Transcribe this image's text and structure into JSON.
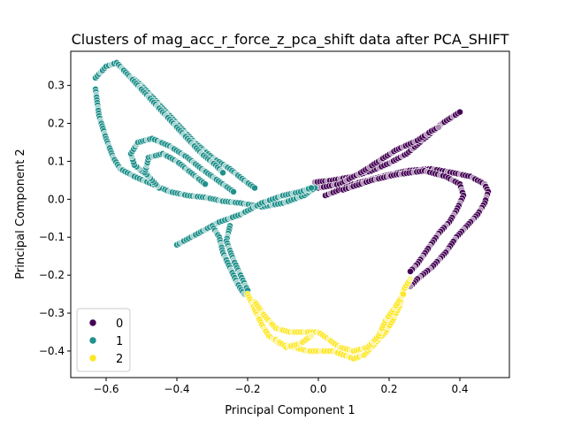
{
  "chart_data": {
    "type": "scatter",
    "title": "Clusters of mag_acc_r_force_z_pca_shift data after PCA_SHIFT",
    "xlabel": "Principal Component 1",
    "ylabel": "Principal Component 2",
    "xlim": [
      -0.7,
      0.54
    ],
    "ylim": [
      -0.47,
      0.39
    ],
    "xticks": [
      -0.6,
      -0.4,
      -0.2,
      0.0,
      0.2,
      0.4
    ],
    "xtick_labels": [
      "−0.6",
      "−0.4",
      "−0.2",
      "0.0",
      "0.2",
      "0.4"
    ],
    "yticks": [
      -0.4,
      -0.3,
      -0.2,
      -0.1,
      0.0,
      0.1,
      0.2,
      0.3
    ],
    "ytick_labels": [
      "−0.4",
      "−0.3",
      "−0.2",
      "−0.1",
      "0.0",
      "0.1",
      "0.2",
      "0.3"
    ],
    "grid": false,
    "legend": {
      "placement": "lower-left",
      "entries": [
        "0",
        "1",
        "2"
      ]
    },
    "series": [
      {
        "name": "0",
        "color": "#440154",
        "paths": [
          [
            [
              -0.01,
              0.045
            ],
            [
              0.04,
              0.05
            ],
            [
              0.1,
              0.06
            ],
            [
              0.15,
              0.075
            ],
            [
              0.2,
              0.095
            ],
            [
              0.25,
              0.12
            ],
            [
              0.3,
              0.16
            ],
            [
              0.35,
              0.2
            ],
            [
              0.4,
              0.23
            ]
          ],
          [
            [
              0.0,
              0.03
            ],
            [
              0.06,
              0.04
            ],
            [
              0.12,
              0.07
            ],
            [
              0.17,
              0.1
            ],
            [
              0.22,
              0.13
            ],
            [
              0.28,
              0.155
            ],
            [
              0.32,
              0.18
            ],
            [
              0.34,
              0.19
            ]
          ],
          [
            [
              0.02,
              0.01
            ],
            [
              0.1,
              0.04
            ],
            [
              0.18,
              0.06
            ],
            [
              0.25,
              0.075
            ],
            [
              0.32,
              0.08
            ],
            [
              0.38,
              0.07
            ],
            [
              0.43,
              0.06
            ],
            [
              0.47,
              0.04
            ],
            [
              0.48,
              0.02
            ],
            [
              0.47,
              -0.01
            ],
            [
              0.45,
              -0.04
            ],
            [
              0.42,
              -0.07
            ],
            [
              0.39,
              -0.1
            ],
            [
              0.36,
              -0.14
            ],
            [
              0.32,
              -0.18
            ],
            [
              0.28,
              -0.21
            ],
            [
              0.26,
              -0.23
            ]
          ],
          [
            [
              0.07,
              0.025
            ],
            [
              0.15,
              0.05
            ],
            [
              0.22,
              0.065
            ],
            [
              0.3,
              0.075
            ],
            [
              0.36,
              0.06
            ],
            [
              0.4,
              0.04
            ],
            [
              0.41,
              0.01
            ],
            [
              0.39,
              -0.03
            ],
            [
              0.37,
              -0.06
            ],
            [
              0.34,
              -0.09
            ],
            [
              0.31,
              -0.13
            ],
            [
              0.28,
              -0.17
            ],
            [
              0.26,
              -0.19
            ]
          ]
        ]
      },
      {
        "name": "1",
        "color": "#21918c",
        "paths": [
          [
            [
              -0.63,
              0.29
            ],
            [
              -0.62,
              0.22
            ],
            [
              -0.6,
              0.16
            ],
            [
              -0.58,
              0.11
            ],
            [
              -0.56,
              0.08
            ],
            [
              -0.52,
              0.06
            ],
            [
              -0.47,
              0.04
            ],
            [
              -0.42,
              0.02
            ],
            [
              -0.37,
              0.01
            ],
            [
              -0.32,
              0.005
            ],
            [
              -0.27,
              -0.005
            ],
            [
              -0.22,
              -0.01
            ],
            [
              -0.16,
              -0.02
            ],
            [
              -0.1,
              -0.01
            ],
            [
              -0.04,
              0.01
            ],
            [
              -0.01,
              0.03
            ]
          ],
          [
            [
              -0.63,
              0.32
            ],
            [
              -0.6,
              0.35
            ],
            [
              -0.57,
              0.36
            ],
            [
              -0.54,
              0.33
            ],
            [
              -0.5,
              0.3
            ],
            [
              -0.45,
              0.25
            ],
            [
              -0.4,
              0.2
            ],
            [
              -0.35,
              0.15
            ],
            [
              -0.3,
              0.11
            ],
            [
              -0.25,
              0.08
            ],
            [
              -0.21,
              0.05
            ],
            [
              -0.18,
              0.03
            ]
          ],
          [
            [
              -0.55,
              0.34
            ],
            [
              -0.52,
              0.31
            ],
            [
              -0.48,
              0.27
            ],
            [
              -0.43,
              0.22
            ],
            [
              -0.38,
              0.17
            ],
            [
              -0.33,
              0.12
            ],
            [
              -0.29,
              0.09
            ],
            [
              -0.27,
              0.07
            ]
          ],
          [
            [
              -0.48,
              0.06
            ],
            [
              -0.52,
              0.09
            ],
            [
              -0.53,
              0.12
            ],
            [
              -0.51,
              0.15
            ],
            [
              -0.47,
              0.16
            ],
            [
              -0.42,
              0.14
            ],
            [
              -0.37,
              0.11
            ],
            [
              -0.33,
              0.08
            ],
            [
              -0.3,
              0.06
            ],
            [
              -0.27,
              0.04
            ],
            [
              -0.24,
              0.02
            ]
          ],
          [
            [
              -0.45,
              0.03
            ],
            [
              -0.49,
              0.07
            ],
            [
              -0.48,
              0.11
            ],
            [
              -0.44,
              0.12
            ],
            [
              -0.4,
              0.1
            ],
            [
              -0.36,
              0.07
            ],
            [
              -0.32,
              0.04
            ]
          ],
          [
            [
              -0.4,
              -0.12
            ],
            [
              -0.34,
              -0.09
            ],
            [
              -0.28,
              -0.06
            ],
            [
              -0.22,
              -0.04
            ],
            [
              -0.16,
              -0.01
            ],
            [
              -0.1,
              0.01
            ],
            [
              -0.05,
              0.02
            ],
            [
              -0.02,
              0.03
            ]
          ],
          [
            [
              -0.3,
              -0.07
            ],
            [
              -0.28,
              -0.1
            ],
            [
              -0.27,
              -0.14
            ],
            [
              -0.25,
              -0.18
            ],
            [
              -0.23,
              -0.22
            ],
            [
              -0.21,
              -0.25
            ]
          ],
          [
            [
              -0.25,
              -0.07
            ],
            [
              -0.26,
              -0.11
            ],
            [
              -0.24,
              -0.16
            ],
            [
              -0.22,
              -0.2
            ],
            [
              -0.2,
              -0.24
            ]
          ]
        ]
      },
      {
        "name": "2",
        "color": "#fde725",
        "paths": [
          [
            [
              -0.2,
              -0.25
            ],
            [
              -0.18,
              -0.29
            ],
            [
              -0.16,
              -0.33
            ],
            [
              -0.14,
              -0.36
            ],
            [
              -0.11,
              -0.38
            ],
            [
              -0.07,
              -0.39
            ],
            [
              -0.03,
              -0.4
            ],
            [
              0.0,
              -0.4
            ],
            [
              0.04,
              -0.4
            ],
            [
              0.07,
              -0.41
            ],
            [
              0.1,
              -0.42
            ],
            [
              0.13,
              -0.41
            ],
            [
              0.16,
              -0.38
            ],
            [
              0.19,
              -0.35
            ],
            [
              0.21,
              -0.32
            ],
            [
              0.23,
              -0.28
            ],
            [
              0.24,
              -0.24
            ],
            [
              0.26,
              -0.21
            ]
          ],
          [
            [
              -0.18,
              -0.27
            ],
            [
              -0.15,
              -0.31
            ],
            [
              -0.12,
              -0.34
            ],
            [
              -0.08,
              -0.35
            ],
            [
              -0.03,
              -0.35
            ],
            [
              0.0,
              -0.35
            ],
            [
              0.03,
              -0.37
            ],
            [
              0.06,
              -0.39
            ],
            [
              0.1,
              -0.4
            ],
            [
              0.14,
              -0.39
            ],
            [
              0.17,
              -0.36
            ],
            [
              0.19,
              -0.32
            ],
            [
              0.22,
              -0.28
            ],
            [
              0.24,
              -0.25
            ]
          ],
          [
            [
              -0.12,
              -0.37
            ],
            [
              -0.09,
              -0.39
            ],
            [
              -0.05,
              -0.38
            ],
            [
              -0.02,
              -0.36
            ]
          ]
        ]
      }
    ]
  }
}
